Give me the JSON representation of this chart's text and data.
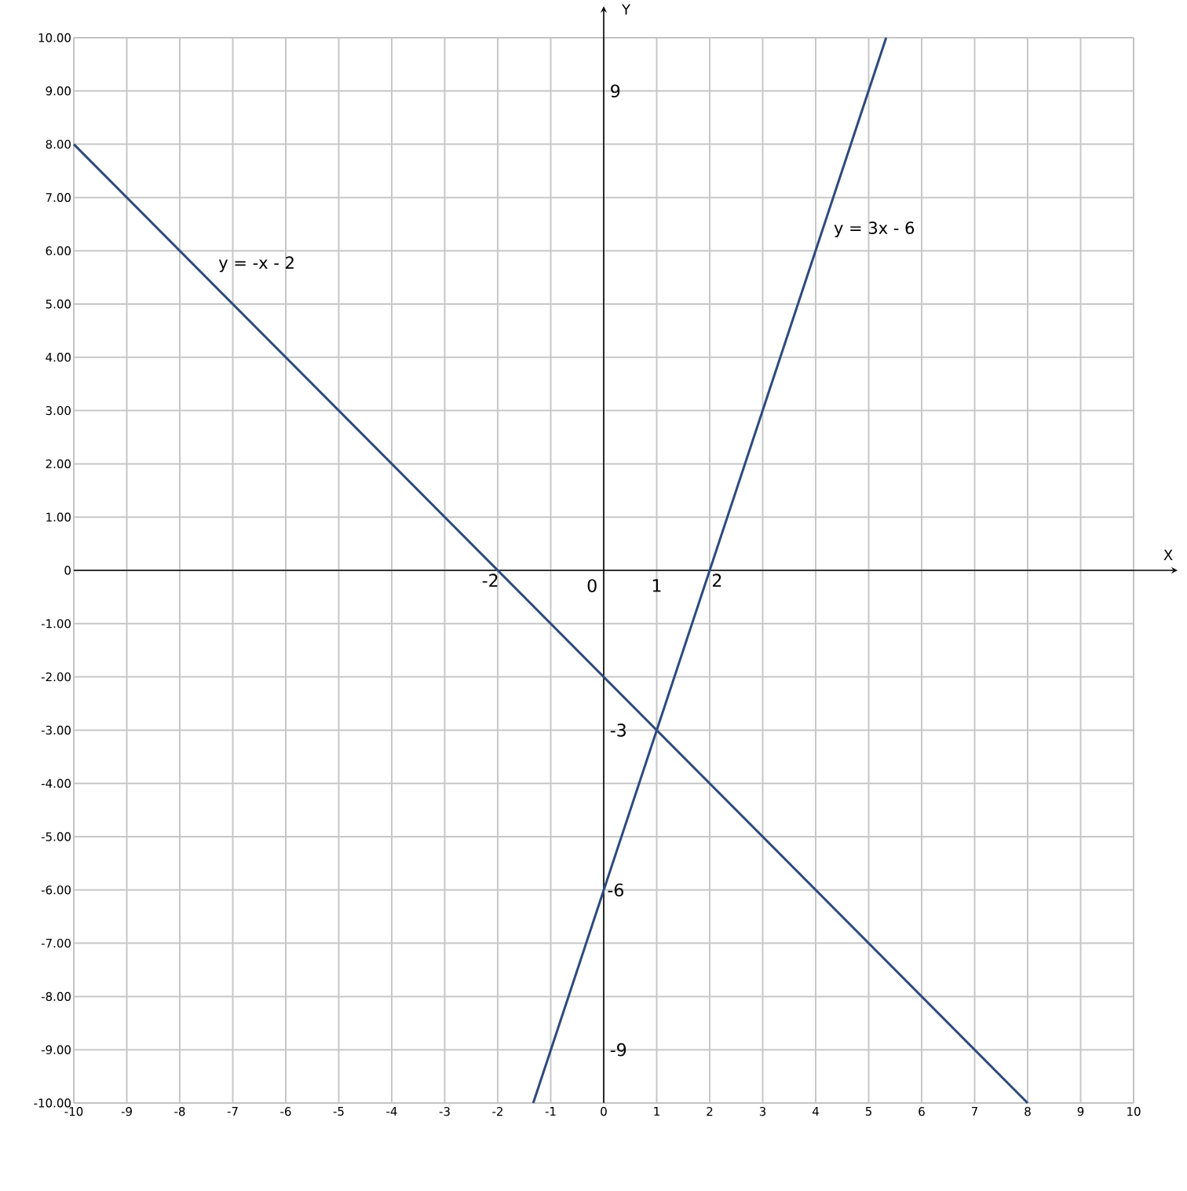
{
  "chart_data": {
    "type": "line",
    "xlabel": "X",
    "ylabel": "Y",
    "xlim": [
      -10,
      10
    ],
    "ylim": [
      -10,
      10
    ],
    "xticks": [
      -10,
      -9,
      -8,
      -7,
      -6,
      -5,
      -4,
      -3,
      -2,
      -1,
      0,
      1,
      2,
      3,
      4,
      5,
      6,
      7,
      8,
      9,
      10
    ],
    "yticks": [
      {
        "value": -10,
        "label": "-10.00"
      },
      {
        "value": -9,
        "label": "-9.00"
      },
      {
        "value": -8,
        "label": "-8.00"
      },
      {
        "value": -7,
        "label": "-7.00"
      },
      {
        "value": -6,
        "label": "-6.00"
      },
      {
        "value": -5,
        "label": "-5.00"
      },
      {
        "value": -4,
        "label": "-4.00"
      },
      {
        "value": -3,
        "label": "-3.00"
      },
      {
        "value": -2,
        "label": "-2.00"
      },
      {
        "value": -1,
        "label": "-1.00"
      },
      0,
      {
        "value": 1,
        "label": "1.00"
      },
      {
        "value": 2,
        "label": "2.00"
      },
      {
        "value": 3,
        "label": "3.00"
      },
      {
        "value": 4,
        "label": "4.00"
      },
      {
        "value": 5,
        "label": "5.00"
      },
      {
        "value": 6,
        "label": "6.00"
      },
      {
        "value": 7,
        "label": "7.00"
      },
      {
        "value": 8,
        "label": "8.00"
      },
      {
        "value": 9,
        "label": "9.00"
      },
      {
        "value": 10,
        "label": "10.00"
      }
    ],
    "grid": true,
    "marker": "none",
    "line_style": "solid",
    "series": [
      {
        "name": "y = -x - 2",
        "color": "#2e4a7d",
        "x": [
          -10,
          8
        ],
        "values": [
          8,
          -10
        ]
      },
      {
        "name": "y = 3x - 6",
        "color": "#2e4a7d",
        "x": [
          -1.33,
          5.33
        ],
        "values": [
          -10,
          10
        ]
      }
    ],
    "annotations": [
      {
        "text": "-2",
        "x": -2,
        "y": 0
      },
      "0",
      "1",
      {
        "text": "2",
        "x": 2,
        "y": 0
      },
      "9",
      "-3",
      {
        "text": "-6",
        "x": 0,
        "y": -6
      },
      "-9"
    ]
  }
}
